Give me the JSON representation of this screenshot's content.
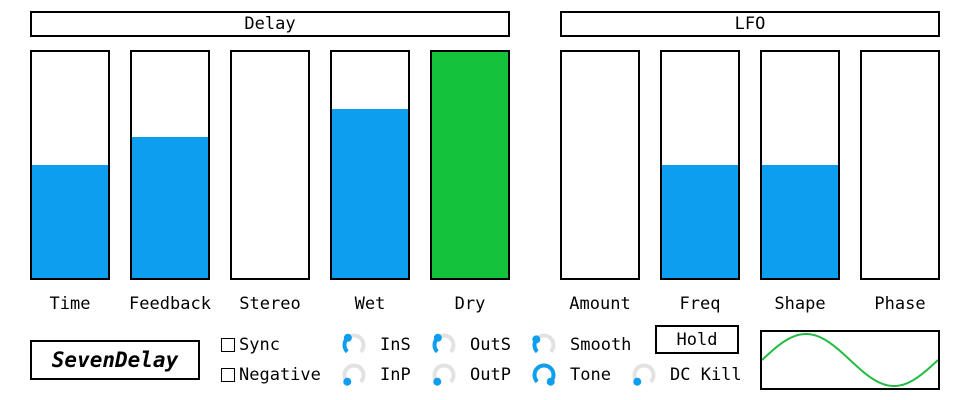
{
  "colors": {
    "fill_blue": "#0d9ef0",
    "fill_green": "#14c23c",
    "knob_track": "#e2e2e2",
    "wave": "#22bb44"
  },
  "sections": {
    "delay": "Delay",
    "lfo": "LFO"
  },
  "sliders": [
    {
      "label": "Time",
      "value": 0.5,
      "color": "#0d9ef0"
    },
    {
      "label": "Feedback",
      "value": 0.625,
      "color": "#0d9ef0"
    },
    {
      "label": "Stereo",
      "value": 0.0,
      "color": "#0d9ef0"
    },
    {
      "label": "Wet",
      "value": 0.75,
      "color": "#0d9ef0"
    },
    {
      "label": "Dry",
      "value": 1.0,
      "color": "#14c23c"
    },
    {
      "label": "Amount",
      "value": 0.0,
      "color": "#0d9ef0"
    },
    {
      "label": "Freq",
      "value": 0.5,
      "color": "#0d9ef0"
    },
    {
      "label": "Shape",
      "value": 0.5,
      "color": "#0d9ef0"
    },
    {
      "label": "Phase",
      "value": 0.0,
      "color": "#0d9ef0"
    }
  ],
  "logo": "SevenDelay",
  "checkboxes": {
    "sync": "Sync",
    "negative": "Negative"
  },
  "knobs": [
    {
      "label": "InS",
      "value": 0.35
    },
    {
      "label": "InP",
      "value": 0.0
    },
    {
      "label": "OutS",
      "value": 0.35
    },
    {
      "label": "OutP",
      "value": 0.0
    },
    {
      "label": "Smooth",
      "value": 0.3
    },
    {
      "label": "Tone",
      "value": 1.0
    },
    {
      "label": "DC Kill",
      "value": 0.0
    }
  ],
  "hold_button": "Hold",
  "lfo_wave": {
    "shape": "sine",
    "cycles": 1.0
  }
}
